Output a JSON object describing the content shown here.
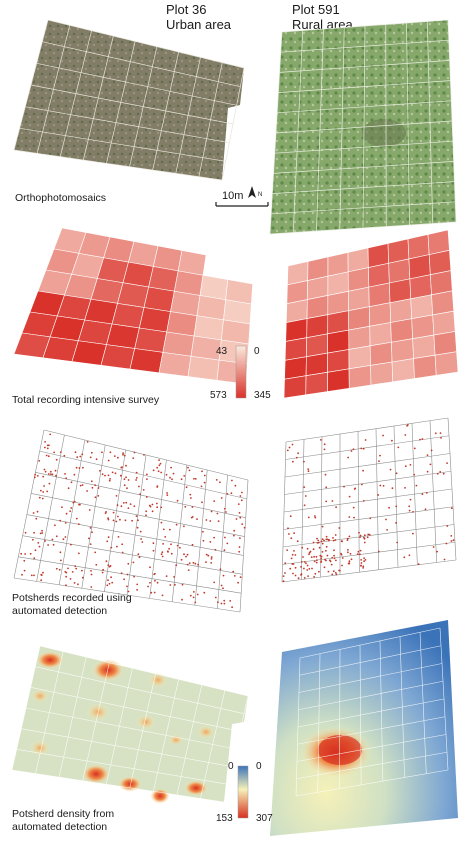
{
  "headers": {
    "left": {
      "plot": "Plot 36",
      "area": "Urban area"
    },
    "right": {
      "plot": "Plot 591",
      "area": "Rural area"
    }
  },
  "rows": [
    {
      "caption": "Orthophotomosaics"
    },
    {
      "caption": "Total recording intensive survey"
    },
    {
      "caption_line1": "Potsherds recorded using",
      "caption_line2": "automated detection"
    },
    {
      "caption_line1": "Potsherd density from",
      "caption_line2": "automated detection"
    }
  ],
  "scale_bar": {
    "label": "10m",
    "north": "N"
  },
  "legend_intensive": {
    "left_min": "43",
    "left_max": "573",
    "right_min": "0",
    "right_max": "345",
    "color_low": "#fbe9dc",
    "color_high": "#d9322b"
  },
  "legend_density": {
    "left_min": "0",
    "left_max": "153",
    "right_min": "0",
    "right_max": "307",
    "color_low": "#3b73b9",
    "color_mid": "#f6f1b8",
    "color_high": "#d7301f"
  },
  "colors": {
    "sherd": "#c0392b",
    "grid": "#9a9a9a",
    "ortho_urban": "#7e7a62",
    "ortho_rural": "#7fa063"
  }
}
